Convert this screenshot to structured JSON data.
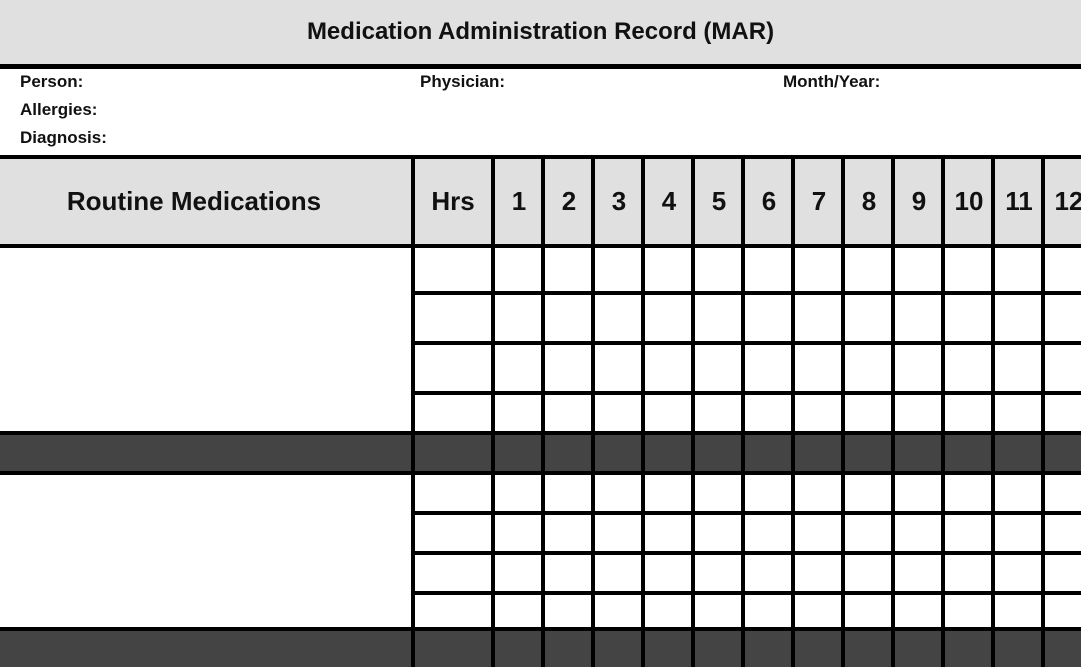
{
  "title": "Medication Administration Record (MAR)",
  "info": {
    "person_label": "Person:",
    "allergies_label": "Allergies:",
    "diagnosis_label": "Diagnosis:",
    "physician_label": "Physician:",
    "month_year_label": "Month/Year:"
  },
  "table": {
    "section_header": "Routine Medications",
    "hours_header": "Hrs",
    "day_headers": [
      "1",
      "2",
      "3",
      "4",
      "5",
      "6",
      "7",
      "8",
      "9",
      "10",
      "11",
      "12"
    ]
  },
  "colors": {
    "header_bg": "#e0e0e0",
    "separator_bg": "#444444",
    "line": "#000000"
  }
}
